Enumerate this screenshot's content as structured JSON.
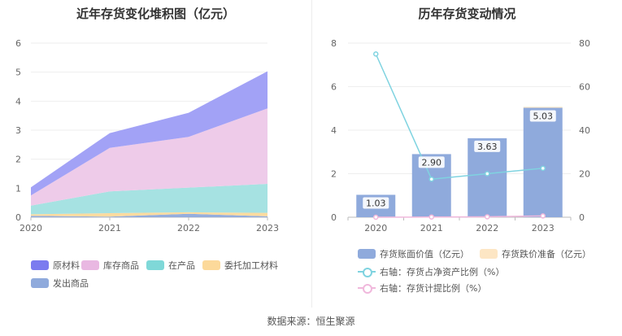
{
  "chart_data": [
    {
      "type": "area",
      "title": "近年存货变化堆积图（亿元）",
      "categories": [
        "2020",
        "2021",
        "2022",
        "2023"
      ],
      "ylim": [
        0,
        6
      ],
      "yticks": [
        0,
        1,
        2,
        3,
        4,
        5,
        6
      ],
      "grid": true,
      "stacked": true,
      "legend_position": "bottom",
      "series": [
        {
          "name": "发出商品",
          "color": "#8faadc",
          "values": [
            0.05,
            0.02,
            0.12,
            0.03
          ]
        },
        {
          "name": "委托加工材料",
          "color": "#fcd99a",
          "values": [
            0.05,
            0.12,
            0.05,
            0.12
          ]
        },
        {
          "name": "在产品",
          "color": "#a1e0e0",
          "values": [
            0.3,
            0.75,
            0.85,
            1.0
          ]
        },
        {
          "name": "库存商品",
          "color": "#edc8e8",
          "values": [
            0.35,
            1.5,
            1.75,
            2.6
          ]
        },
        {
          "name": "原材料",
          "color": "#9d9df5",
          "values": [
            0.28,
            0.51,
            0.83,
            1.28
          ]
        }
      ],
      "legend_order": [
        "原材料",
        "库存商品",
        "在产品",
        "委托加工材料",
        "发出商品"
      ],
      "legend_colors": {
        "原材料": "#7b7bef",
        "库存商品": "#e9b8e2",
        "在产品": "#7fd8d8",
        "委托加工材料": "#fcd99a",
        "发出商品": "#8faadc"
      }
    },
    {
      "type": "bar",
      "title": "历年存货变动情况",
      "categories": [
        "2020",
        "2021",
        "2022",
        "2023"
      ],
      "ylim": [
        0,
        8
      ],
      "yticks": [
        0,
        2,
        4,
        6,
        8
      ],
      "y2lim": [
        0,
        80
      ],
      "y2ticks": [
        0,
        20,
        40,
        60,
        80
      ],
      "grid": true,
      "legend_position": "bottom",
      "series": [
        {
          "name": "存货账面价值（亿元）",
          "type": "bar",
          "color": "#8faadc",
          "values": [
            1.03,
            2.9,
            3.63,
            5.03
          ],
          "labels": [
            "1.03",
            "2.90",
            "3.63",
            "5.03"
          ]
        },
        {
          "name": "存货跌价准备（亿元）",
          "type": "bar",
          "color": "#fde6c4",
          "values": [
            0.0,
            0.0,
            0.0,
            0.04
          ]
        },
        {
          "name": "右轴：存货占净资产比例（%）",
          "type": "line",
          "axis": "right",
          "color": "#7fd3e0",
          "values": [
            75.0,
            17.5,
            20.0,
            22.5
          ]
        },
        {
          "name": "右轴：存货计提比例（%）",
          "type": "line",
          "axis": "right",
          "color": "#f0b8dc",
          "values": [
            0.0,
            0.1,
            0.2,
            0.6
          ]
        }
      ]
    }
  ],
  "footer": {
    "source": "数据来源：恒生聚源"
  }
}
